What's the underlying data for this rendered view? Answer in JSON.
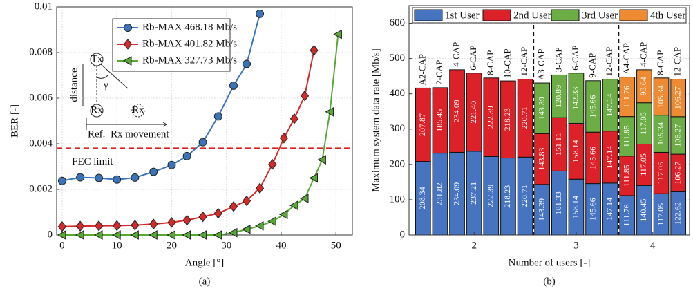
{
  "chart_data": [
    {
      "type": "line",
      "caption": "(a)",
      "xlabel": "Angle [°]",
      "ylabel": "BER [-]",
      "xlim": [
        -1,
        53
      ],
      "xticks": [
        0,
        10,
        20,
        30,
        40,
        50
      ],
      "ylim": [
        0,
        0.01
      ],
      "yticks": [
        0,
        0.002,
        0.004,
        0.006,
        0.008,
        0.01
      ],
      "grid": true,
      "series": [
        {
          "name": "Rb-MAX 468.18 Mb/s",
          "color": "#3b74b6",
          "marker": "circle",
          "x": [
            0,
            3.3,
            6.7,
            10,
            13.3,
            16.7,
            20,
            22.8,
            25.7,
            28.5,
            31.3,
            33.7,
            36.1
          ],
          "values": [
            0.00237,
            0.00253,
            0.0025,
            0.00243,
            0.00252,
            0.00277,
            0.00307,
            0.00346,
            0.00407,
            0.0052,
            0.00655,
            0.0075,
            0.0097
          ]
        },
        {
          "name": "Rb-MAX 401.82 Mb/s",
          "color": "#d42a2a",
          "marker": "diamond",
          "x": [
            0,
            3.3,
            6.7,
            10,
            13.3,
            16.7,
            20,
            22.8,
            25.7,
            28.5,
            31.3,
            33.7,
            36.1,
            38.4,
            40.5,
            42.4,
            44.3,
            46
          ],
          "values": [
            0.00037,
            0.00039,
            0.0004,
            0.00041,
            0.00043,
            0.00048,
            0.00055,
            0.00065,
            0.0008,
            0.00095,
            0.00125,
            0.0015,
            0.00205,
            0.0031,
            0.00425,
            0.0051,
            0.0061,
            0.0081
          ]
        },
        {
          "name": "Rb-MAX 327.73 Mb/s",
          "color": "#57a835",
          "marker": "triangle-left",
          "x": [
            0,
            3.3,
            6.7,
            10,
            13.3,
            16.7,
            20,
            22.8,
            25.7,
            28.5,
            31.3,
            33.7,
            36.1,
            38.4,
            40.5,
            42.4,
            44.3,
            46,
            47.5,
            48.9,
            50.4
          ],
          "values": [
            0,
            0,
            0,
            0,
            0,
            0,
            0,
            0,
            0,
            0,
            0.0001,
            0.00025,
            0.0004,
            0.0006,
            0.0009,
            0.0013,
            0.0016,
            0.0025,
            0.0033,
            0.0054,
            0.0088
          ]
        }
      ],
      "hlines": [
        {
          "value": 0.0038,
          "label": "FEC limit",
          "color": "#e02020"
        }
      ],
      "inset": {
        "tx": "Tx",
        "rx": "Rx",
        "rx_moved": "Rx",
        "distance": "distance",
        "angle": "γ",
        "ref": "Ref.",
        "movement": "Rx movement"
      }
    },
    {
      "type": "bar",
      "stacked": true,
      "caption": "(b)",
      "xlabel": "Number of users [-]",
      "ylabel": "Maximum system data rate [Mb/s]",
      "ylim": [
        0,
        650
      ],
      "yticks": [
        0,
        100,
        200,
        300,
        400,
        500,
        600
      ],
      "grid": true,
      "groups": [
        {
          "name": "2",
          "categories": [
            "A2-CAP",
            "2-CAP",
            "4-CAP",
            "6-CAP",
            "8-CAP",
            "10-CAP",
            "12-CAP"
          ]
        },
        {
          "name": "3",
          "categories": [
            "A3-CAP",
            "3-CAP",
            "6-CAP",
            "9-CAP",
            "12-CAP"
          ]
        },
        {
          "name": "4",
          "categories": [
            "A4-CAP",
            "4-CAP",
            "8-CAP",
            "12-CAP"
          ]
        }
      ],
      "series": [
        {
          "name": "1st User",
          "color": "#4674c1",
          "values": [
            208.34,
            231.82,
            234.09,
            237.21,
            222.39,
            218.23,
            220.71,
            143.39,
            181.33,
            158.14,
            145.66,
            147.14,
            111.76,
            140.45,
            117.05,
            122.62
          ],
          "value_labels": [
            "208.34",
            "231.82",
            "234.09",
            "237.21",
            "222.39",
            "218.23",
            "220.71",
            "143.39",
            "181.33",
            "158.14",
            "145.66",
            "147.14",
            "111.76",
            "140.45",
            "117.05",
            "122.62"
          ]
        },
        {
          "name": "2nd User",
          "color": "#dc2128",
          "values": [
            207.87,
            185.45,
            234.09,
            221.4,
            222.39,
            218.23,
            220.71,
            143.83,
            151.11,
            158.14,
            145.66,
            147.14,
            111.85,
            117.05,
            117.05,
            106.27
          ],
          "value_labels": [
            "207.87",
            "185.45",
            "234.09",
            "221.40",
            "222.39",
            "218.23",
            "220.71",
            "143.83",
            "151.11",
            "158.14",
            "145.66",
            "147.14",
            "111.85",
            "117.05",
            "117.05",
            "106.27"
          ]
        },
        {
          "name": "3rd User",
          "color": "#6cad45",
          "values": [
            null,
            null,
            null,
            null,
            null,
            null,
            null,
            143.39,
            120.89,
            142.33,
            145.66,
            147.14,
            111.85,
            117.05,
            105.34,
            106.27
          ],
          "value_labels": [
            null,
            null,
            null,
            null,
            null,
            null,
            null,
            "143.39",
            "120.89",
            "142.33",
            "145.66",
            "147.14",
            "111.85",
            "117.05",
            "105.34",
            "106.27"
          ]
        },
        {
          "name": "4th User",
          "color": "#ee8a32",
          "values": [
            null,
            null,
            null,
            null,
            null,
            null,
            null,
            null,
            null,
            null,
            null,
            null,
            111.76,
            93.64,
            105.34,
            106.27
          ],
          "value_labels": [
            null,
            null,
            null,
            null,
            null,
            null,
            null,
            null,
            null,
            null,
            null,
            null,
            "111.76",
            "93.64",
            "105.34",
            "106.27"
          ]
        }
      ]
    }
  ]
}
